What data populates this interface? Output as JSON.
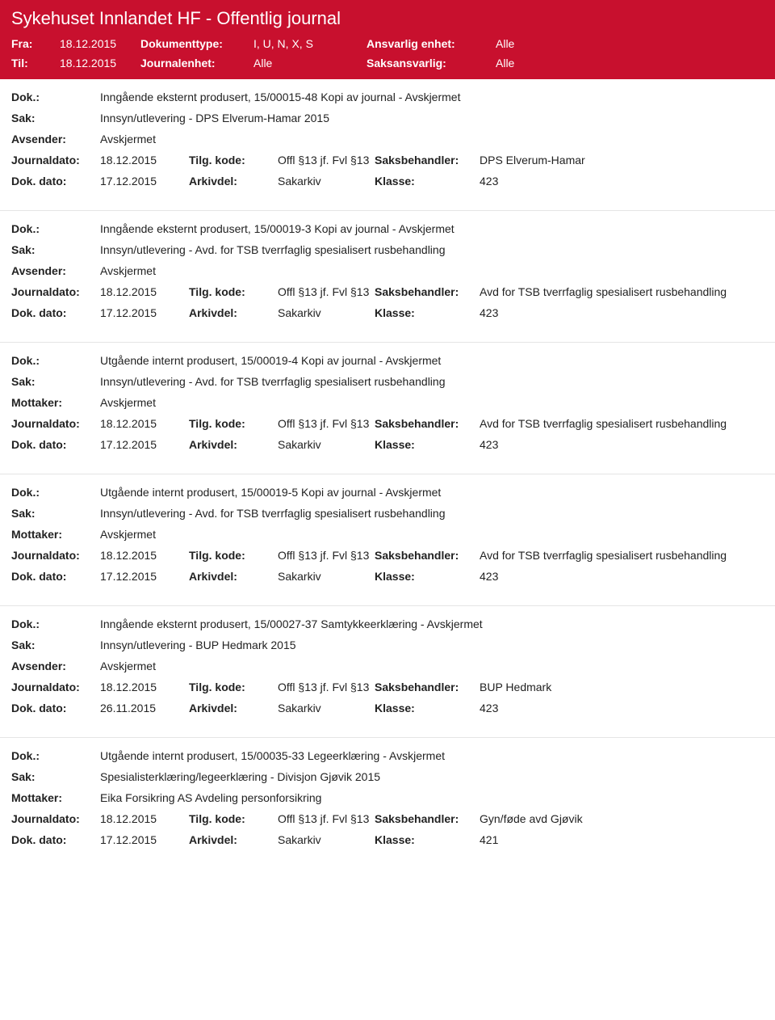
{
  "header": {
    "title": "Sykehuset Innlandet HF - Offentlig journal",
    "fra_label": "Fra:",
    "fra_value": "18.12.2015",
    "til_label": "Til:",
    "til_value": "18.12.2015",
    "doktype_label": "Dokumenttype:",
    "doktype_value": "I, U, N, X, S",
    "journalenhet_label": "Journalenhet:",
    "journalenhet_value": "Alle",
    "ansvarlig_label": "Ansvarlig enhet:",
    "ansvarlig_value": "Alle",
    "saksansvarlig_label": "Saksansvarlig:",
    "saksansvarlig_value": "Alle"
  },
  "labels": {
    "dok": "Dok.:",
    "sak": "Sak:",
    "avsender": "Avsender:",
    "mottaker": "Mottaker:",
    "journaldato": "Journaldato:",
    "dokdato": "Dok. dato:",
    "tilgkode": "Tilg. kode:",
    "arkivdel": "Arkivdel:",
    "saksbehandler": "Saksbehandler:",
    "klasse": "Klasse:"
  },
  "records": [
    {
      "dok": "Inngående eksternt produsert, 15/00015-48 Kopi av journal - Avskjermet",
      "sak": "Innsyn/utlevering - DPS Elverum-Hamar 2015",
      "party_label": "Avsender:",
      "party": "Avskjermet",
      "journaldato": "18.12.2015",
      "tilgkode": "Offl §13 jf. Fvl §13",
      "saksbehandler": "DPS Elverum-Hamar",
      "dokdato": "17.12.2015",
      "arkivdel": "Sakarkiv",
      "klasse": "423"
    },
    {
      "dok": "Inngående eksternt produsert, 15/00019-3 Kopi av journal - Avskjermet",
      "sak": "Innsyn/utlevering - Avd. for TSB tverrfaglig spesialisert rusbehandling",
      "party_label": "Avsender:",
      "party": "Avskjermet",
      "journaldato": "18.12.2015",
      "tilgkode": "Offl §13 jf. Fvl §13",
      "saksbehandler": "Avd for TSB tverrfaglig spesialisert rusbehandling",
      "dokdato": "17.12.2015",
      "arkivdel": "Sakarkiv",
      "klasse": "423"
    },
    {
      "dok": "Utgående internt produsert, 15/00019-4 Kopi av journal - Avskjermet",
      "sak": "Innsyn/utlevering - Avd. for TSB tverrfaglig spesialisert rusbehandling",
      "party_label": "Mottaker:",
      "party": "Avskjermet",
      "journaldato": "18.12.2015",
      "tilgkode": "Offl §13 jf. Fvl §13",
      "saksbehandler": "Avd for TSB tverrfaglig spesialisert rusbehandling",
      "dokdato": "17.12.2015",
      "arkivdel": "Sakarkiv",
      "klasse": "423"
    },
    {
      "dok": "Utgående internt produsert, 15/00019-5 Kopi av journal - Avskjermet",
      "sak": "Innsyn/utlevering - Avd. for TSB tverrfaglig spesialisert rusbehandling",
      "party_label": "Mottaker:",
      "party": "Avskjermet",
      "journaldato": "18.12.2015",
      "tilgkode": "Offl §13 jf. Fvl §13",
      "saksbehandler": "Avd for TSB tverrfaglig spesialisert rusbehandling",
      "dokdato": "17.12.2015",
      "arkivdel": "Sakarkiv",
      "klasse": "423"
    },
    {
      "dok": "Inngående eksternt produsert, 15/00027-37 Samtykkeerklæring - Avskjermet",
      "sak": "Innsyn/utlevering - BUP Hedmark 2015",
      "party_label": "Avsender:",
      "party": "Avskjermet",
      "journaldato": "18.12.2015",
      "tilgkode": "Offl §13 jf. Fvl §13",
      "saksbehandler": "BUP Hedmark",
      "dokdato": "26.11.2015",
      "arkivdel": "Sakarkiv",
      "klasse": "423"
    },
    {
      "dok": "Utgående internt produsert, 15/00035-33 Legeerklæring - Avskjermet",
      "sak": "Spesialisterklæring/legeerklæring - Divisjon Gjøvik 2015",
      "party_label": "Mottaker:",
      "party": "Eika Forsikring AS Avdeling personforsikring",
      "journaldato": "18.12.2015",
      "tilgkode": "Offl §13 jf. Fvl §13",
      "saksbehandler": "Gyn/føde avd Gjøvik",
      "dokdato": "17.12.2015",
      "arkivdel": "Sakarkiv",
      "klasse": "421"
    }
  ]
}
